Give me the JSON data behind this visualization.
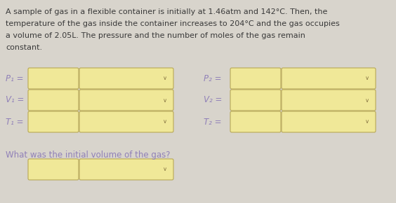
{
  "background_color": "#d8d4cc",
  "text_color": "#3a3a3a",
  "box_fill_color": "#f0e898",
  "box_edge_color": "#b8a855",
  "title_text": "A sample of gas in a flexible container is initially at 1.46atm and 142°C. Then, the\ntemperature of the gas inside the container increases to 204°C and the gas occupies\na volume of 2.05L. The pressure and the number of moles of the gas remain\nconstant.",
  "labels_left": [
    "P₁ =",
    "V₁ =",
    "T₁ ="
  ],
  "labels_right": [
    "P₂ =",
    "V₂ =",
    "T₂ ="
  ],
  "question_text": "What was the initial volume of the gas?",
  "font_size_title": 8.0,
  "font_size_label": 8.5,
  "font_size_question": 8.5,
  "label_color": "#9080b8",
  "chevron_color": "#887744",
  "chevron_size": 6.0
}
